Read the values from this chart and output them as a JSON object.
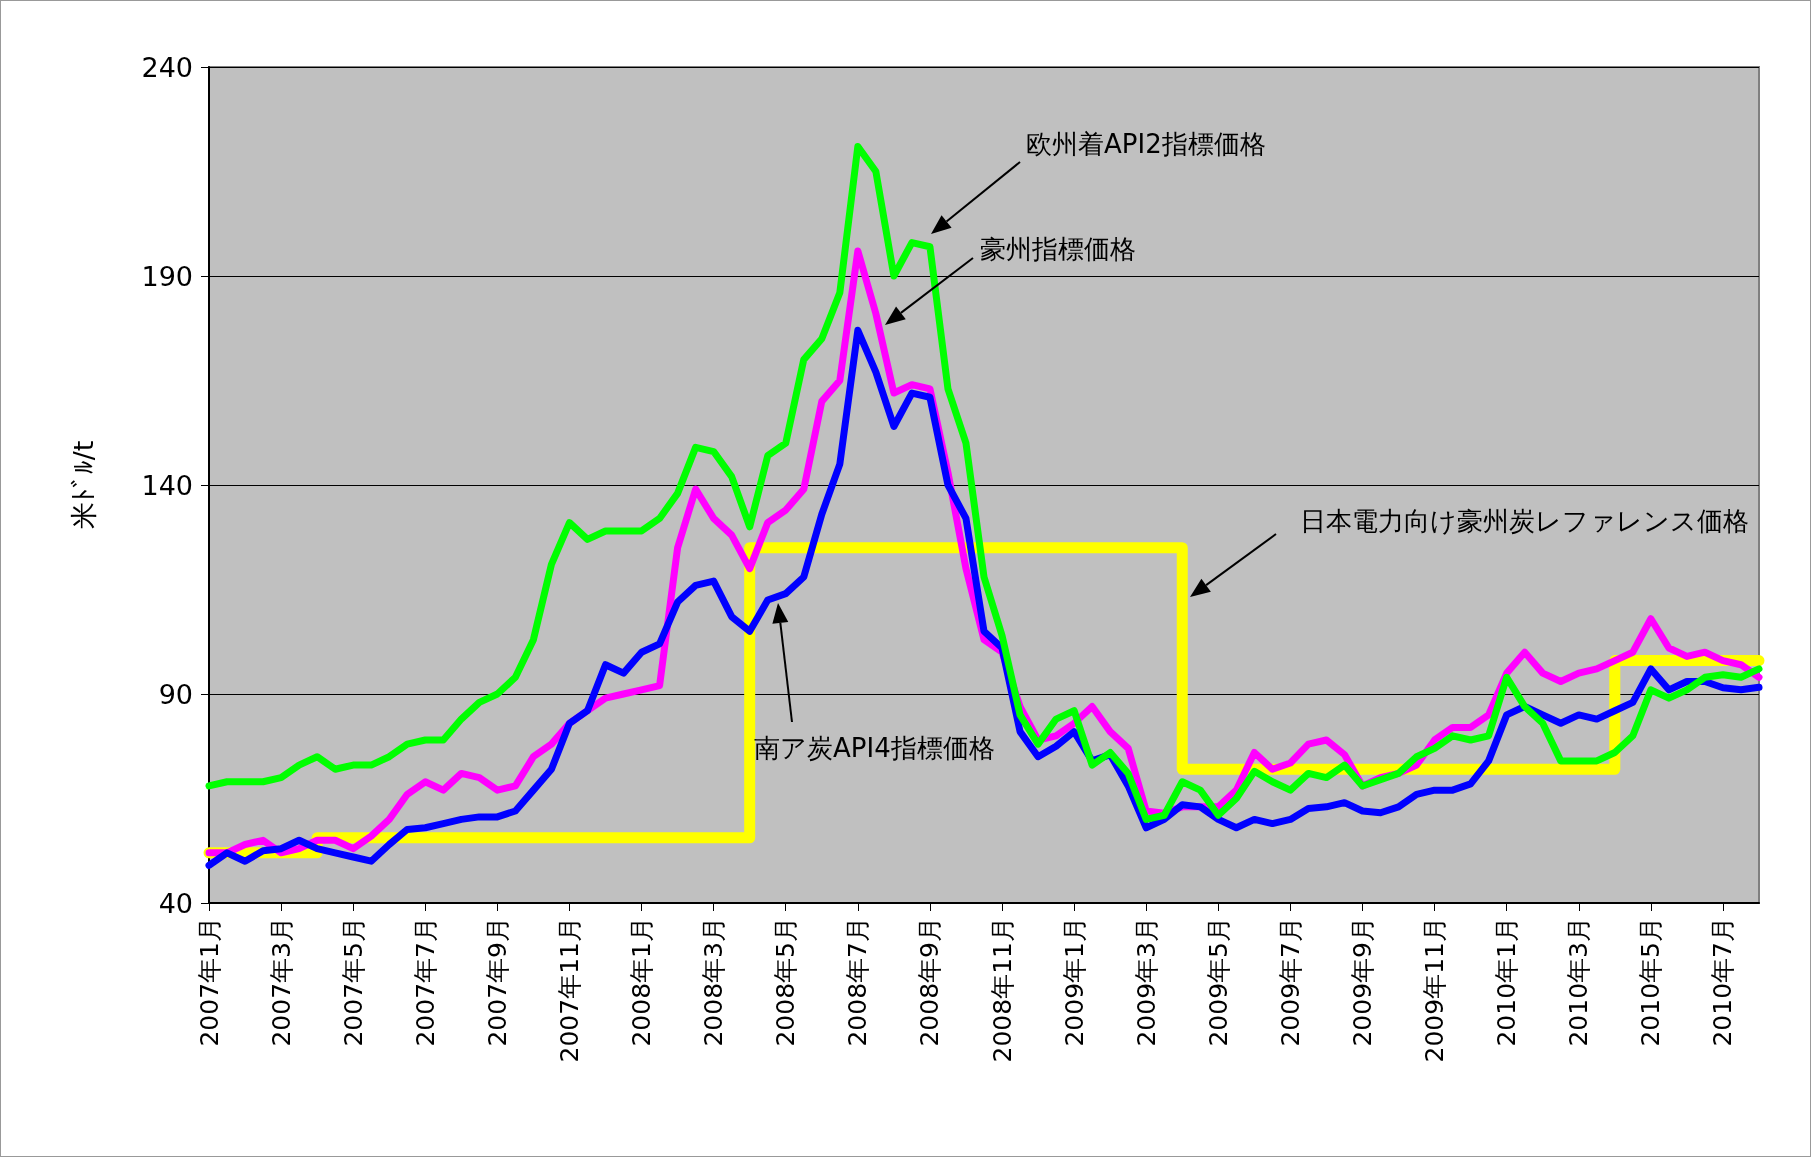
{
  "chart_data": {
    "type": "line",
    "ylabel": "米ﾄﾞﾙ/t",
    "ylim": [
      40,
      240
    ],
    "yticks": [
      40,
      90,
      140,
      190,
      240
    ],
    "grid": "y",
    "categories": [
      "2007年1月",
      null,
      null,
      null,
      "2007年3月",
      null,
      null,
      null,
      "2007年5月",
      null,
      null,
      null,
      "2007年7月",
      null,
      null,
      null,
      "2007年9月",
      null,
      null,
      null,
      "2007年11月",
      null,
      null,
      null,
      "2008年1月",
      null,
      null,
      null,
      "2008年3月",
      null,
      null,
      null,
      "2008年5月",
      null,
      null,
      null,
      "2008年7月",
      null,
      null,
      null,
      "2008年9月",
      null,
      null,
      null,
      "2008年11月",
      null,
      null,
      null,
      "2009年1月",
      null,
      null,
      null,
      "2009年3月",
      null,
      null,
      null,
      "2009年5月",
      null,
      null,
      null,
      "2009年7月",
      null,
      null,
      null,
      "2009年9月",
      null,
      null,
      null,
      "2009年11月",
      null,
      null,
      null,
      "2010年1月",
      null,
      null,
      null,
      "2010年3月",
      null,
      null,
      null,
      "2010年5月",
      null,
      null,
      null,
      "2010年7月",
      null,
      null
    ],
    "series": [
      {
        "type": "step",
        "color": "#ffff00",
        "values": [
          52,
          52,
          52,
          52,
          52,
          52,
          55.6,
          55.6,
          55.6,
          55.6,
          55.6,
          55.6,
          55.6,
          55.6,
          55.6,
          55.6,
          55.6,
          55.6,
          55.6,
          55.6,
          55.6,
          55.6,
          55.6,
          55.6,
          55.6,
          55.6,
          55.6,
          55.6,
          55.6,
          55.6,
          125,
          125,
          125,
          125,
          125,
          125,
          125,
          125,
          125,
          125,
          125,
          125,
          125,
          125,
          125,
          125,
          125,
          125,
          125,
          125,
          125,
          125,
          125,
          125,
          72,
          72,
          72,
          72,
          72,
          72,
          72,
          72,
          72,
          72,
          72,
          72,
          72,
          72,
          72,
          72,
          72,
          72,
          72,
          72,
          72,
          72,
          72,
          72,
          98,
          98,
          98,
          98,
          98,
          98,
          98,
          98,
          98
        ]
      },
      {
        "color": "#ff00ff",
        "values": [
          52,
          52,
          54,
          55,
          52,
          53,
          55,
          55,
          53,
          56,
          60,
          66,
          69,
          67,
          71,
          70,
          67,
          68,
          75,
          78,
          83,
          86,
          89,
          90,
          91,
          92,
          125,
          139,
          132,
          128,
          120,
          131,
          134,
          139,
          160,
          165,
          196,
          181,
          162,
          164,
          163,
          143,
          120,
          103,
          100,
          87,
          79,
          80,
          83,
          87,
          81,
          77,
          62,
          61.5,
          63,
          63,
          63,
          67,
          76,
          72,
          73.5,
          78,
          79,
          75.5,
          68,
          70,
          71,
          73,
          79,
          82,
          82,
          85,
          95,
          100,
          95,
          93,
          95,
          96,
          98,
          100,
          108,
          101,
          99,
          100,
          98,
          97,
          94
        ]
      },
      {
        "color": "#0000ff",
        "values": [
          49,
          52,
          50,
          52.5,
          53,
          55,
          53,
          52,
          51,
          50,
          54,
          57.6,
          58,
          59,
          60,
          60.6,
          60.6,
          62,
          67,
          72,
          83,
          86,
          97,
          95,
          100,
          102,
          112,
          116,
          117,
          108.5,
          105,
          112.5,
          114,
          118,
          133,
          145,
          177,
          167,
          154,
          162,
          161,
          140,
          132,
          105,
          101,
          81,
          75,
          77.5,
          81,
          74,
          75.5,
          68,
          58,
          60,
          63.5,
          63,
          60,
          58,
          60,
          59,
          60,
          62.6,
          63,
          64,
          62,
          61.6,
          63,
          66,
          67,
          67,
          68.5,
          74,
          85,
          87,
          85,
          83,
          85,
          84,
          86,
          88,
          96,
          91,
          93,
          93,
          91.5,
          91,
          91.6
        ]
      },
      {
        "color": "#00ff00",
        "values": [
          68,
          69,
          69,
          69,
          70,
          73,
          75,
          72,
          73,
          73,
          75,
          78,
          79,
          79,
          84,
          88,
          90,
          94,
          103,
          121,
          131,
          127,
          129,
          129,
          129,
          132,
          138,
          149,
          148,
          142,
          130,
          147,
          150,
          170,
          175,
          186,
          221,
          215,
          190,
          198,
          197,
          163,
          150,
          118,
          104,
          85,
          78,
          84,
          86,
          73,
          76,
          71,
          60,
          61,
          69,
          67,
          61,
          65,
          71.5,
          69,
          67,
          71,
          70,
          73,
          68,
          69.5,
          71,
          75,
          77,
          80,
          79,
          80,
          94,
          87,
          83,
          74,
          74,
          74,
          76,
          80,
          91,
          89,
          91,
          94,
          94.6,
          94,
          96
        ]
      }
    ],
    "annotations": [
      "欧州着API2指標価格",
      "豪州指標価格",
      "日本電力向け豪州炭レファレンス価格",
      "南ア炭API4指標価格"
    ]
  }
}
